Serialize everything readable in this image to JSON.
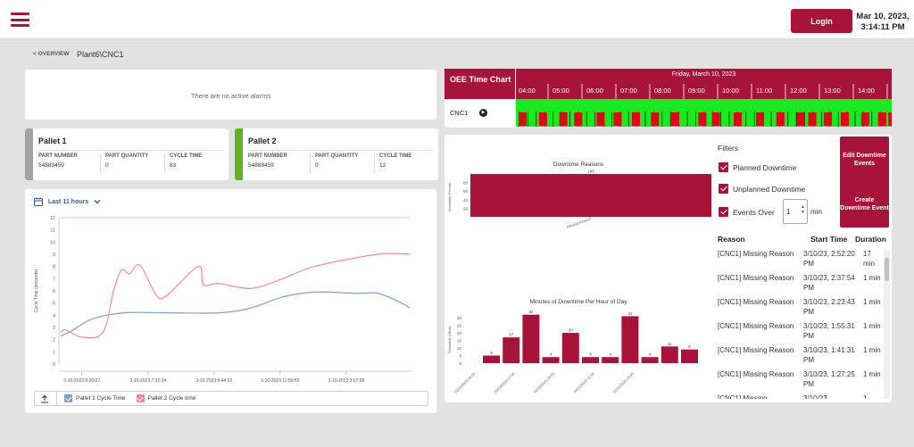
{
  "colors": {
    "accent": "#a8133a",
    "pallet1": "#a3a3a3",
    "pallet2": "#5fb323",
    "series1": "#7f9ec6",
    "series2": "#e98aa1",
    "run": "#17ea1e",
    "down": "#e5001a"
  },
  "header": {
    "login_label": "Login",
    "date": "Mar 10, 2023,",
    "time": "3:14:11 PM"
  },
  "breadcrumb": {
    "back": "< OVERVIEW",
    "current": "Plant6\\CNC1"
  },
  "alarms": {
    "text": "There are no active alarms"
  },
  "pallets": [
    {
      "title": "Pallet 1",
      "part_number_label": "PART NUMBER",
      "part_number": "54889459",
      "part_quantity_label": "PART QUANTITY",
      "part_quantity": "0",
      "cycle_time_label": "CYCLE TIME",
      "cycle_time": "83"
    },
    {
      "title": "Pallet 2",
      "part_number_label": "PART NUMBER",
      "part_number": "54889459",
      "part_quantity_label": "PART QUANTITY",
      "part_quantity": "0",
      "cycle_time_label": "CYCLE TIME",
      "cycle_time": "12"
    }
  ],
  "cycle_chart": {
    "range_label": "Last 11 hours",
    "legend": [
      "Pallet 1 Cycle Time",
      "Pallet 2 Cycle time"
    ]
  },
  "oee": {
    "title": "OEE Time Chart",
    "date": "Friday, March 10, 2023",
    "hours": [
      "04:00",
      "05:00",
      "06:00",
      "07:00",
      "08:00",
      "09:00",
      "10:00",
      "11:00",
      "12:00",
      "13:00",
      "14:00"
    ],
    "machine": "CNC1",
    "downtime_hours": [
      0.08,
      0.68,
      1.28,
      1.72,
      2.38,
      2.88,
      3.42,
      3.98,
      4.58,
      5.38,
      5.78,
      6.42,
      7.08,
      7.68,
      8.28,
      8.62,
      9.08,
      9.58,
      10.18,
      10.68,
      10.98
    ]
  },
  "filters": {
    "title": "Filters",
    "planned": "Planned Downtime",
    "unplanned": "Unplanned Downtime",
    "events_over": "Events Over",
    "events_value": "1",
    "min_label": "min",
    "edit_button": "Edit Downtime Events",
    "create_button": "Create Downtime Event"
  },
  "downtime_table": {
    "headers": [
      "Reason",
      "Start Time",
      "Duration"
    ],
    "rows": [
      {
        "reason": "[CNC1] Missing Reason",
        "start": "3/10/23, 2:52:20 PM",
        "duration": "17 min"
      },
      {
        "reason": "[CNC1] Missing Reason",
        "start": "3/10/23, 2:37:54 PM",
        "duration": "1 min"
      },
      {
        "reason": "[CNC1] Missing Reason",
        "start": "3/10/23, 2:23:43 PM",
        "duration": "1 min"
      },
      {
        "reason": "[CNC1] Missing Reason",
        "start": "3/10/23, 1:55:31 PM",
        "duration": "1 min"
      },
      {
        "reason": "[CNC1] Missing Reason",
        "start": "3/10/23, 1:41:31 PM",
        "duration": "1 min"
      },
      {
        "reason": "[CNC1] Missing Reason",
        "start": "3/10/23, 1:27:25 PM",
        "duration": "1 min"
      },
      {
        "reason": "[CNC1] Missing",
        "start": "3/10/23,",
        "duration": "1"
      }
    ]
  },
  "chart_data": [
    {
      "type": "line",
      "title": "",
      "ylabel": "Cycle Time (seconds)",
      "ylim": [
        0,
        12
      ],
      "yticks": [
        0,
        1,
        2,
        3,
        4,
        5,
        6,
        7,
        8,
        9,
        10,
        11,
        12
      ],
      "xlim": [
        0,
        660
      ],
      "xtick_positions": [
        40,
        165,
        290,
        415,
        540
      ],
      "xtick_labels": [
        "3-10-2023 8:20:07",
        "3-10-2023 7:32:04",
        "3-10-2023 8:44:02",
        "3-10-2023 11:59:59",
        "3-10-2023 3:07:58"
      ],
      "series": [
        {
          "name": "Pallet 1 Cycle Time",
          "x": [
            0,
            20,
            60,
            120,
            200,
            300,
            360,
            420,
            480,
            560,
            600,
            640,
            660
          ],
          "y": [
            2.3,
            2.7,
            3.7,
            4.2,
            4.2,
            4.2,
            4.6,
            5.5,
            5.9,
            5.8,
            5.8,
            5.1,
            4.6
          ]
        },
        {
          "name": "Pallet 2 Cycle time",
          "x": [
            0,
            10,
            40,
            80,
            100,
            115,
            130,
            150,
            180,
            200,
            260,
            270,
            300,
            360,
            420,
            480,
            600,
            660
          ],
          "y": [
            2.6,
            2.8,
            2.2,
            2.6,
            6.0,
            7.7,
            7.4,
            8.1,
            5.7,
            5.6,
            8.0,
            6.5,
            6.6,
            6.2,
            7.0,
            8.0,
            9.0,
            9.0
          ]
        },
        {
          "name": "reference",
          "x": [
            0,
            660
          ],
          "y": [
            12,
            12
          ]
        }
      ]
    },
    {
      "type": "bar",
      "title": "Downtime Reasons",
      "categories": [
        "Missing Reason"
      ],
      "values": [
        100
      ],
      "ylabel": "Downtime Percent",
      "ylim": [
        0,
        100
      ],
      "yticks": [
        20,
        40,
        60,
        80
      ]
    },
    {
      "type": "bar",
      "title": "Minutes of Downtime Per Hour of Day",
      "categories": [
        "3/10/2023 04:00",
        "3/10/2023 05:00",
        "3/10/2023 06:00",
        "3/10/2023 07:00",
        "3/10/2023 08:00",
        "3/10/2023 09:00",
        "3/10/2023 10:00",
        "3/10/2023 11:00",
        "3/10/2023 12:00",
        "3/10/2023 13:00",
        "3/10/2023 14:00"
      ],
      "tick_labels": [
        "03/10/2023 05:00",
        "03/10/2023 07:00",
        "03/10/2023 09:00",
        "03/10/2023 11:00",
        "03/10/2023 13:00"
      ],
      "values": [
        5,
        17,
        32,
        4,
        20,
        4,
        4,
        31,
        4,
        11,
        9
      ],
      "ylabel": "Downtime (Mins)",
      "ylim": [
        0,
        33
      ],
      "yticks": [
        0,
        5,
        10,
        15,
        20,
        25,
        30
      ]
    }
  ]
}
